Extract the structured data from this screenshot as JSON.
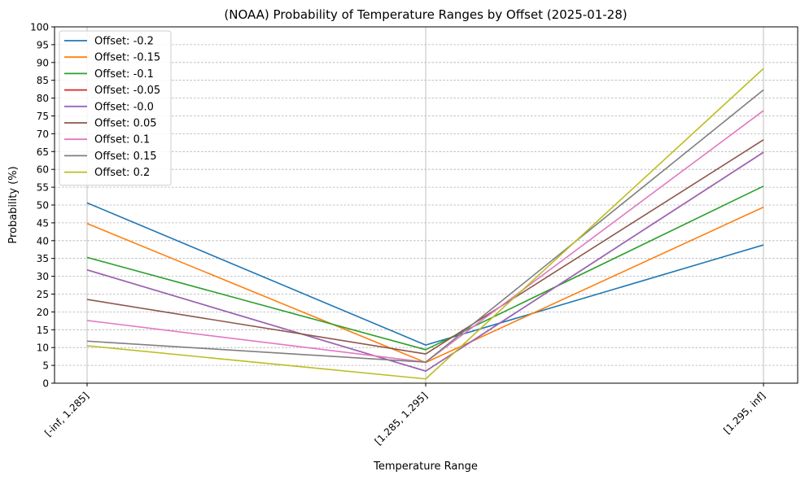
{
  "chart_data": {
    "type": "line",
    "title": "(NOAA) Probability of Temperature Ranges by Offset (2025-01-28)",
    "xlabel": "Temperature Range",
    "ylabel": "Probability (%)",
    "categories": [
      "[-inf, 1.285]",
      "[1.285, 1.295]",
      "[1.295, inf]"
    ],
    "ylim": [
      0,
      100
    ],
    "yticks": [
      0,
      5,
      10,
      15,
      20,
      25,
      30,
      35,
      40,
      45,
      50,
      55,
      60,
      65,
      70,
      75,
      80,
      85,
      90,
      95,
      100
    ],
    "grid": true,
    "legend_position": "top-left",
    "series": [
      {
        "name": "Offset: -0.2",
        "color": "#1f77b4",
        "values": [
          50.6,
          10.7,
          38.8
        ]
      },
      {
        "name": "Offset: -0.15",
        "color": "#ff7f0e",
        "values": [
          44.8,
          5.8,
          49.4
        ]
      },
      {
        "name": "Offset: -0.1",
        "color": "#2ca02c",
        "values": [
          35.3,
          9.4,
          55.3
        ]
      },
      {
        "name": "Offset: -0.05",
        "color": "#d62728",
        "values": [
          31.8,
          3.4,
          64.8
        ]
      },
      {
        "name": "Offset: -0.0",
        "color": "#9467bd",
        "values": [
          31.8,
          3.4,
          64.8
        ]
      },
      {
        "name": "Offset: 0.05",
        "color": "#8c564b",
        "values": [
          23.5,
          8.2,
          68.3
        ]
      },
      {
        "name": "Offset: 0.1",
        "color": "#e377c2",
        "values": [
          17.6,
          5.9,
          76.5
        ]
      },
      {
        "name": "Offset: 0.15",
        "color": "#7f7f7f",
        "values": [
          11.8,
          5.9,
          82.3
        ]
      },
      {
        "name": "Offset: 0.2",
        "color": "#bcbd22",
        "values": [
          10.5,
          1.2,
          88.3
        ]
      }
    ]
  }
}
